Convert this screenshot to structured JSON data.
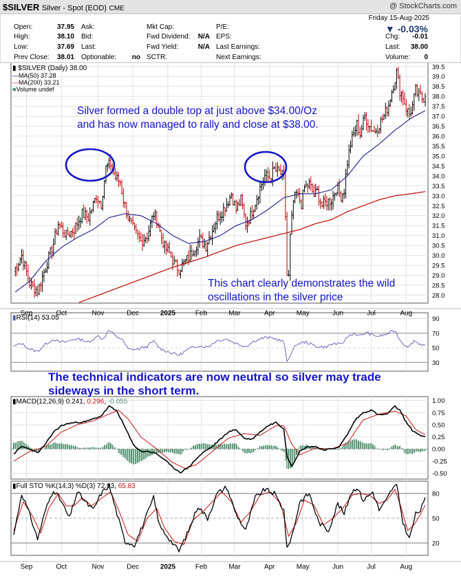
{
  "header": {
    "symbol": "$SILVER",
    "name": "Silver - Spot (EOD)",
    "exchange": "CME",
    "watermark": "@ StockCharts.com",
    "date": "Friday 15-Aug-2025",
    "change_pct": "-0.03%",
    "quote": [
      {
        "label": "Open:",
        "value": "37.95"
      },
      {
        "label": "High:",
        "value": "38.10"
      },
      {
        "label": "Low:",
        "value": "37.69"
      },
      {
        "label": "Prev Close:",
        "value": "38.01"
      }
    ],
    "quote2": [
      {
        "label": "Ask:",
        "value": ""
      },
      {
        "label": "Bid:",
        "value": ""
      },
      {
        "label": "Last:",
        "value": ""
      },
      {
        "label": "Optionable:",
        "value": "no"
      }
    ],
    "fundamentals": [
      {
        "label": "Mkt Cap:",
        "value": ""
      },
      {
        "label": "Fwd Dividend:",
        "value": "N/A"
      },
      {
        "label": "Fwd Yield:",
        "value": "N/A"
      },
      {
        "label": "SCTR:",
        "value": ""
      }
    ],
    "earnings": [
      {
        "label": "P/E:"
      },
      {
        "label": "EPS:"
      },
      {
        "label": "Last Earnings:"
      },
      {
        "label": "Next Earnings:"
      }
    ],
    "right": [
      {
        "label": "Chg:",
        "value": "-0.01"
      },
      {
        "label": "Last:",
        "value": "38.00"
      },
      {
        "label": "Volume:",
        "value": "0"
      }
    ]
  },
  "legend": {
    "price": "$SILVER (Daily) 38.00",
    "ma50": "MA(50) 37.28",
    "ma200": "MA(200) 33.21",
    "volume": "Volume undef"
  },
  "annotations": {
    "top_line1": "Silver formed a double top at just above $34.00/Oz",
    "top_line2": "and has now managed to rally and close at $38.00.",
    "bottom_line1": "This chart clearly demonstrates the wild",
    "bottom_line2": "oscillations in the silver price",
    "mid_line1": "The technical indicators are now neutral so silver may trade",
    "mid_line2": "sideways in the short term."
  },
  "panel_titles": {
    "rsi": "RSI(14) 53.05",
    "macd_prefix": "MACD(12,26,9) 0.241, ",
    "macd_signal_value": "0.296",
    "macd_sep": ", ",
    "macd_hist_value": "-0.055",
    "sto_prefix": "Full STO %K(14,3) %D(3) 72.93, ",
    "sto_d_value": "65.83"
  },
  "chart_data": {
    "type": "line",
    "title": "$SILVER (Daily)",
    "x_axis": [
      "Sep",
      "Oct",
      "Nov",
      "Dec",
      "2025",
      "Feb",
      "Mar",
      "Apr",
      "May",
      "Jun",
      "Jul",
      "Aug"
    ],
    "price_ticks": [
      "28.0",
      "28.5",
      "29.0",
      "29.5",
      "30.0",
      "30.5",
      "31.0",
      "31.5",
      "32.0",
      "32.5",
      "33.0",
      "33.5",
      "34.0",
      "34.5",
      "35.0",
      "35.5",
      "36.0",
      "36.5",
      "37.0",
      "37.5",
      "38.0",
      "38.5",
      "39.0",
      "39.5"
    ],
    "price_range": [
      27.6,
      39.7
    ],
    "price_keypoints": [
      [
        0,
        29.2
      ],
      [
        5,
        30.0
      ],
      [
        10,
        28.6
      ],
      [
        15,
        28.2
      ],
      [
        20,
        29.4
      ],
      [
        25,
        30.6
      ],
      [
        28,
        31.6
      ],
      [
        33,
        31.0
      ],
      [
        38,
        31.3
      ],
      [
        43,
        32.1
      ],
      [
        47,
        31.9
      ],
      [
        52,
        33.0
      ],
      [
        55,
        32.6
      ],
      [
        58,
        34.4
      ],
      [
        61,
        34.6
      ],
      [
        64,
        33.9
      ],
      [
        67,
        33.7
      ],
      [
        69,
        32.8
      ],
      [
        72,
        31.9
      ],
      [
        76,
        31.2
      ],
      [
        80,
        30.7
      ],
      [
        84,
        31.0
      ],
      [
        88,
        32.1
      ],
      [
        90,
        31.8
      ],
      [
        92,
        31.2
      ],
      [
        95,
        30.4
      ],
      [
        98,
        30.1
      ],
      [
        101,
        29.6
      ],
      [
        104,
        29.3
      ],
      [
        107,
        29.6
      ],
      [
        110,
        29.9
      ],
      [
        113,
        30.3
      ],
      [
        117,
        30.8
      ],
      [
        121,
        30.5
      ],
      [
        125,
        31.3
      ],
      [
        128,
        31.9
      ],
      [
        131,
        32.2
      ],
      [
        134,
        32.6
      ],
      [
        137,
        33.1
      ],
      [
        140,
        32.3
      ],
      [
        143,
        32.8
      ],
      [
        146,
        31.6
      ],
      [
        149,
        32.0
      ],
      [
        152,
        32.7
      ],
      [
        155,
        33.4
      ],
      [
        158,
        34.0
      ],
      [
        161,
        33.9
      ],
      [
        164,
        34.3
      ],
      [
        167,
        34.2
      ],
      [
        170,
        33.9
      ],
      [
        171,
        32.0
      ],
      [
        172,
        29.0
      ],
      [
        173,
        28.9
      ],
      [
        174,
        30.9
      ],
      [
        176,
        32.7
      ],
      [
        178,
        33.1
      ],
      [
        181,
        32.6
      ],
      [
        183,
        33.4
      ],
      [
        186,
        33.6
      ],
      [
        189,
        33.0
      ],
      [
        191,
        33.2
      ],
      [
        194,
        32.5
      ],
      [
        197,
        32.7
      ],
      [
        200,
        32.8
      ],
      [
        203,
        33.4
      ],
      [
        206,
        33.0
      ],
      [
        208,
        33.3
      ],
      [
        210,
        34.7
      ],
      [
        212,
        35.6
      ],
      [
        214,
        36.1
      ],
      [
        216,
        36.6
      ],
      [
        218,
        36.1
      ],
      [
        221,
        37.0
      ],
      [
        224,
        36.5
      ],
      [
        227,
        36.2
      ],
      [
        230,
        36.6
      ],
      [
        233,
        37.0
      ],
      [
        236,
        37.6
      ],
      [
        239,
        38.6
      ],
      [
        241,
        39.2
      ],
      [
        243,
        38.3
      ],
      [
        245,
        38.0
      ],
      [
        247,
        37.4
      ],
      [
        249,
        37.1
      ],
      [
        251,
        37.5
      ],
      [
        253,
        38.3
      ],
      [
        255,
        38.0
      ],
      [
        257,
        37.9
      ],
      [
        259,
        38.0
      ]
    ],
    "ma50_keypoints": [
      [
        0,
        28.1
      ],
      [
        10,
        28.7
      ],
      [
        20,
        29.7
      ],
      [
        30,
        30.4
      ],
      [
        40,
        30.9
      ],
      [
        50,
        31.3
      ],
      [
        60,
        31.9
      ],
      [
        70,
        32.1
      ],
      [
        80,
        32.0
      ],
      [
        90,
        31.6
      ],
      [
        100,
        31.0
      ],
      [
        110,
        30.6
      ],
      [
        120,
        30.7
      ],
      [
        130,
        31.0
      ],
      [
        140,
        31.5
      ],
      [
        150,
        31.8
      ],
      [
        160,
        32.3
      ],
      [
        170,
        32.9
      ],
      [
        180,
        33.1
      ],
      [
        190,
        33.1
      ],
      [
        200,
        33.3
      ],
      [
        210,
        34.0
      ],
      [
        220,
        35.0
      ],
      [
        230,
        35.6
      ],
      [
        240,
        36.3
      ],
      [
        250,
        36.9
      ],
      [
        259,
        37.28
      ]
    ],
    "ma200_keypoints": [
      [
        40,
        27.6
      ],
      [
        60,
        28.2
      ],
      [
        80,
        28.8
      ],
      [
        100,
        29.4
      ],
      [
        120,
        29.9
      ],
      [
        140,
        30.5
      ],
      [
        160,
        30.9
      ],
      [
        170,
        31.1
      ],
      [
        180,
        31.3
      ],
      [
        190,
        31.6
      ],
      [
        200,
        31.8
      ],
      [
        210,
        32.2
      ],
      [
        220,
        32.5
      ],
      [
        230,
        32.8
      ],
      [
        240,
        33.0
      ],
      [
        250,
        33.1
      ],
      [
        259,
        33.21
      ]
    ],
    "rsi_ticks": [
      "30",
      "50",
      "70",
      "90"
    ],
    "rsi_range": [
      18,
      98
    ],
    "rsi_keypoints": [
      [
        0,
        52
      ],
      [
        5,
        56
      ],
      [
        10,
        48
      ],
      [
        15,
        45
      ],
      [
        20,
        55
      ],
      [
        25,
        62
      ],
      [
        28,
        58
      ],
      [
        33,
        58
      ],
      [
        38,
        62
      ],
      [
        43,
        61
      ],
      [
        48,
        57
      ],
      [
        52,
        67
      ],
      [
        56,
        62
      ],
      [
        60,
        74
      ],
      [
        64,
        66
      ],
      [
        68,
        62
      ],
      [
        72,
        48
      ],
      [
        78,
        48
      ],
      [
        84,
        52
      ],
      [
        88,
        59
      ],
      [
        92,
        49
      ],
      [
        98,
        44
      ],
      [
        104,
        40
      ],
      [
        110,
        48
      ],
      [
        116,
        53
      ],
      [
        122,
        51
      ],
      [
        128,
        60
      ],
      [
        134,
        62
      ],
      [
        140,
        56
      ],
      [
        146,
        52
      ],
      [
        152,
        60
      ],
      [
        158,
        64
      ],
      [
        164,
        63
      ],
      [
        170,
        58
      ],
      [
        172,
        31
      ],
      [
        174,
        40
      ],
      [
        178,
        55
      ],
      [
        184,
        58
      ],
      [
        190,
        52
      ],
      [
        196,
        51
      ],
      [
        202,
        56
      ],
      [
        206,
        54
      ],
      [
        210,
        65
      ],
      [
        214,
        70
      ],
      [
        218,
        66
      ],
      [
        222,
        71
      ],
      [
        226,
        67
      ],
      [
        230,
        66
      ],
      [
        234,
        68
      ],
      [
        238,
        72
      ],
      [
        240,
        74
      ],
      [
        243,
        61
      ],
      [
        246,
        54
      ],
      [
        249,
        52
      ],
      [
        252,
        60
      ],
      [
        255,
        56
      ],
      [
        259,
        53.05
      ]
    ],
    "macd_ticks": [
      "-0.50",
      "-0.25",
      "0.00",
      "0.25",
      "0.50",
      "0.75",
      "1.00"
    ],
    "macd_range": [
      -0.62,
      1.08
    ],
    "macd_keypoints": [
      [
        0,
        -0.1
      ],
      [
        5,
        0.05
      ],
      [
        10,
        0.0
      ],
      [
        15,
        -0.08
      ],
      [
        20,
        0.1
      ],
      [
        25,
        0.35
      ],
      [
        30,
        0.48
      ],
      [
        35,
        0.53
      ],
      [
        40,
        0.55
      ],
      [
        45,
        0.56
      ],
      [
        50,
        0.62
      ],
      [
        55,
        0.68
      ],
      [
        60,
        0.88
      ],
      [
        65,
        0.78
      ],
      [
        70,
        0.45
      ],
      [
        75,
        0.1
      ],
      [
        80,
        -0.05
      ],
      [
        85,
        -0.05
      ],
      [
        90,
        -0.1
      ],
      [
        95,
        -0.22
      ],
      [
        100,
        -0.38
      ],
      [
        105,
        -0.48
      ],
      [
        110,
        -0.38
      ],
      [
        115,
        -0.2
      ],
      [
        120,
        -0.05
      ],
      [
        125,
        0.05
      ],
      [
        130,
        0.2
      ],
      [
        135,
        0.35
      ],
      [
        140,
        0.4
      ],
      [
        145,
        0.22
      ],
      [
        150,
        0.2
      ],
      [
        155,
        0.35
      ],
      [
        160,
        0.48
      ],
      [
        165,
        0.55
      ],
      [
        170,
        0.42
      ],
      [
        172,
        -0.15
      ],
      [
        175,
        -0.35
      ],
      [
        180,
        -0.05
      ],
      [
        185,
        0.05
      ],
      [
        190,
        0.05
      ],
      [
        195,
        -0.02
      ],
      [
        200,
        0.0
      ],
      [
        205,
        0.05
      ],
      [
        210,
        0.3
      ],
      [
        215,
        0.6
      ],
      [
        220,
        0.75
      ],
      [
        225,
        0.8
      ],
      [
        230,
        0.7
      ],
      [
        235,
        0.72
      ],
      [
        240,
        0.88
      ],
      [
        243,
        0.8
      ],
      [
        247,
        0.55
      ],
      [
        251,
        0.38
      ],
      [
        255,
        0.3
      ],
      [
        259,
        0.241
      ]
    ],
    "signal_keypoints": [
      [
        0,
        -0.25
      ],
      [
        10,
        -0.05
      ],
      [
        20,
        0.05
      ],
      [
        30,
        0.35
      ],
      [
        40,
        0.5
      ],
      [
        50,
        0.58
      ],
      [
        60,
        0.72
      ],
      [
        66,
        0.8
      ],
      [
        72,
        0.62
      ],
      [
        80,
        0.25
      ],
      [
        90,
        0.0
      ],
      [
        100,
        -0.28
      ],
      [
        108,
        -0.4
      ],
      [
        115,
        -0.32
      ],
      [
        125,
        -0.05
      ],
      [
        135,
        0.22
      ],
      [
        145,
        0.32
      ],
      [
        155,
        0.28
      ],
      [
        165,
        0.48
      ],
      [
        170,
        0.48
      ],
      [
        175,
        0.1
      ],
      [
        180,
        -0.12
      ],
      [
        190,
        0.02
      ],
      [
        200,
        0.0
      ],
      [
        210,
        0.12
      ],
      [
        220,
        0.6
      ],
      [
        230,
        0.72
      ],
      [
        240,
        0.78
      ],
      [
        247,
        0.68
      ],
      [
        253,
        0.4
      ],
      [
        259,
        0.296
      ]
    ],
    "sto_ticks": [
      "20",
      "50",
      "80"
    ],
    "sto_range": [
      5,
      95
    ],
    "sto_k_keypoints": [
      [
        0,
        30
      ],
      [
        5,
        80
      ],
      [
        10,
        55
      ],
      [
        15,
        25
      ],
      [
        20,
        60
      ],
      [
        25,
        85
      ],
      [
        30,
        70
      ],
      [
        35,
        50
      ],
      [
        40,
        82
      ],
      [
        45,
        70
      ],
      [
        50,
        60
      ],
      [
        55,
        80
      ],
      [
        60,
        90
      ],
      [
        65,
        55
      ],
      [
        70,
        22
      ],
      [
        76,
        18
      ],
      [
        82,
        45
      ],
      [
        88,
        75
      ],
      [
        92,
        40
      ],
      [
        98,
        25
      ],
      [
        104,
        10
      ],
      [
        110,
        35
      ],
      [
        116,
        65
      ],
      [
        122,
        50
      ],
      [
        128,
        80
      ],
      [
        134,
        88
      ],
      [
        140,
        55
      ],
      [
        146,
        35
      ],
      [
        152,
        75
      ],
      [
        158,
        85
      ],
      [
        164,
        80
      ],
      [
        170,
        60
      ],
      [
        172,
        12
      ],
      [
        176,
        35
      ],
      [
        180,
        70
      ],
      [
        186,
        80
      ],
      [
        192,
        45
      ],
      [
        198,
        35
      ],
      [
        204,
        68
      ],
      [
        208,
        55
      ],
      [
        212,
        80
      ],
      [
        216,
        88
      ],
      [
        220,
        72
      ],
      [
        226,
        82
      ],
      [
        230,
        60
      ],
      [
        234,
        70
      ],
      [
        238,
        85
      ],
      [
        241,
        90
      ],
      [
        245,
        45
      ],
      [
        249,
        25
      ],
      [
        253,
        55
      ],
      [
        256,
        60
      ],
      [
        259,
        72.93
      ]
    ],
    "sto_d_keypoints": [
      [
        0,
        35
      ],
      [
        6,
        70
      ],
      [
        12,
        52
      ],
      [
        17,
        32
      ],
      [
        22,
        62
      ],
      [
        28,
        80
      ],
      [
        33,
        65
      ],
      [
        38,
        65
      ],
      [
        43,
        75
      ],
      [
        49,
        65
      ],
      [
        55,
        74
      ],
      [
        61,
        82
      ],
      [
        66,
        60
      ],
      [
        72,
        30
      ],
      [
        78,
        22
      ],
      [
        84,
        50
      ],
      [
        90,
        62
      ],
      [
        95,
        38
      ],
      [
        101,
        22
      ],
      [
        107,
        18
      ],
      [
        113,
        48
      ],
      [
        119,
        58
      ],
      [
        125,
        70
      ],
      [
        131,
        82
      ],
      [
        137,
        70
      ],
      [
        143,
        45
      ],
      [
        149,
        58
      ],
      [
        155,
        78
      ],
      [
        161,
        82
      ],
      [
        168,
        68
      ],
      [
        173,
        28
      ],
      [
        178,
        45
      ],
      [
        183,
        72
      ],
      [
        189,
        66
      ],
      [
        195,
        42
      ],
      [
        201,
        50
      ],
      [
        207,
        62
      ],
      [
        213,
        78
      ],
      [
        218,
        80
      ],
      [
        224,
        78
      ],
      [
        230,
        68
      ],
      [
        235,
        72
      ],
      [
        240,
        85
      ],
      [
        244,
        62
      ],
      [
        248,
        35
      ],
      [
        252,
        42
      ],
      [
        256,
        55
      ],
      [
        259,
        65.83
      ]
    ],
    "volume": "undef"
  },
  "colors": {
    "price_up": "#000000",
    "price_down": "#c00000",
    "ma50": "#1c1c8c",
    "ma200": "#c81414",
    "annotation": "#1414c8",
    "indicator": "#5a5ab4",
    "macd_hist": "#4f8f6f",
    "change_down": "#203a6e"
  }
}
